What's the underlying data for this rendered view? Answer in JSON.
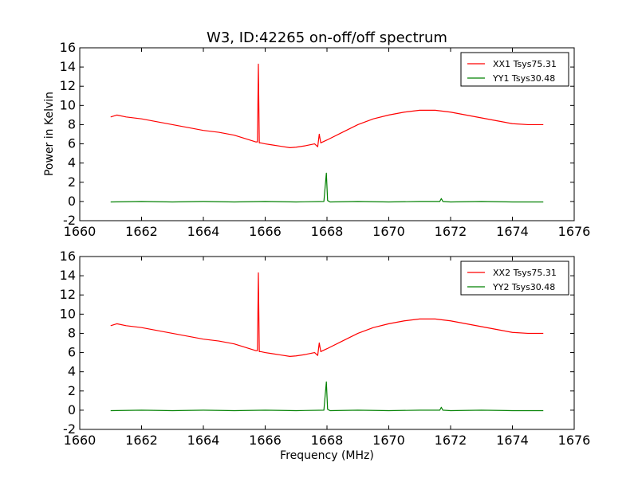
{
  "figure": {
    "title": "W3, ID:42265 on-off/off spectrum",
    "ylabel": "Power in Kelvin",
    "xlabel": "Frequency (MHz)"
  },
  "chart_data": [
    {
      "type": "line",
      "title": "W3, ID:42265 on-off/off spectrum",
      "xlabel": "",
      "ylabel": "Power in Kelvin",
      "xlim": [
        1660,
        1676
      ],
      "ylim": [
        -2,
        16
      ],
      "xticks": [
        1660,
        1662,
        1664,
        1666,
        1668,
        1670,
        1672,
        1674,
        1676
      ],
      "yticks": [
        -2,
        0,
        2,
        4,
        6,
        8,
        10,
        12,
        14,
        16
      ],
      "legend_position": "top-right",
      "series": [
        {
          "name": "XX1 Tsys75.31",
          "color": "#ff0000",
          "x": [
            1661.0,
            1661.2,
            1661.5,
            1662.0,
            1662.5,
            1663.0,
            1663.5,
            1664.0,
            1664.5,
            1665.0,
            1665.3,
            1665.6,
            1665.7,
            1665.75,
            1665.78,
            1665.81,
            1665.85,
            1666.0,
            1666.2,
            1666.5,
            1666.8,
            1667.0,
            1667.3,
            1667.6,
            1667.7,
            1667.75,
            1667.8,
            1668.0,
            1668.5,
            1669.0,
            1669.5,
            1670.0,
            1670.5,
            1671.0,
            1671.5,
            1672.0,
            1672.5,
            1673.0,
            1673.5,
            1674.0,
            1674.5,
            1675.0
          ],
          "y": [
            8.8,
            9.0,
            8.8,
            8.6,
            8.3,
            8.0,
            7.7,
            7.4,
            7.2,
            6.9,
            6.6,
            6.3,
            6.2,
            6.2,
            14.3,
            6.1,
            6.1,
            6.0,
            5.9,
            5.75,
            5.6,
            5.65,
            5.8,
            6.0,
            5.7,
            7.0,
            6.1,
            6.4,
            7.2,
            8.0,
            8.6,
            9.0,
            9.3,
            9.5,
            9.5,
            9.3,
            9.0,
            8.7,
            8.4,
            8.1,
            8.0,
            8.0
          ]
        },
        {
          "name": "YY1 Tsys30.48",
          "color": "#008000",
          "x": [
            1661.0,
            1662.0,
            1663.0,
            1664.0,
            1665.0,
            1666.0,
            1667.0,
            1667.9,
            1667.98,
            1668.02,
            1668.1,
            1669.0,
            1670.0,
            1671.0,
            1671.65,
            1671.7,
            1671.75,
            1672.0,
            1673.0,
            1674.0,
            1675.0
          ],
          "y": [
            -0.05,
            0.0,
            -0.05,
            0.0,
            -0.05,
            0.0,
            -0.05,
            0.0,
            2.95,
            0.1,
            -0.05,
            0.0,
            -0.05,
            0.0,
            0.0,
            0.3,
            0.0,
            -0.05,
            0.0,
            -0.05,
            -0.05
          ]
        }
      ]
    },
    {
      "type": "line",
      "title": "",
      "xlabel": "Frequency (MHz)",
      "ylabel": "",
      "xlim": [
        1660,
        1676
      ],
      "ylim": [
        -2,
        16
      ],
      "xticks": [
        1660,
        1662,
        1664,
        1666,
        1668,
        1670,
        1672,
        1674,
        1676
      ],
      "yticks": [
        -2,
        0,
        2,
        4,
        6,
        8,
        10,
        12,
        14,
        16
      ],
      "legend_position": "top-right",
      "series": [
        {
          "name": "XX2 Tsys75.31",
          "color": "#ff0000",
          "x": [
            1661.0,
            1661.2,
            1661.5,
            1662.0,
            1662.5,
            1663.0,
            1663.5,
            1664.0,
            1664.5,
            1665.0,
            1665.3,
            1665.6,
            1665.7,
            1665.75,
            1665.78,
            1665.81,
            1665.85,
            1666.0,
            1666.2,
            1666.5,
            1666.8,
            1667.0,
            1667.3,
            1667.6,
            1667.7,
            1667.75,
            1667.8,
            1668.0,
            1668.5,
            1669.0,
            1669.5,
            1670.0,
            1670.5,
            1671.0,
            1671.5,
            1672.0,
            1672.5,
            1673.0,
            1673.5,
            1674.0,
            1674.5,
            1675.0
          ],
          "y": [
            8.8,
            9.0,
            8.8,
            8.6,
            8.3,
            8.0,
            7.7,
            7.4,
            7.2,
            6.9,
            6.6,
            6.3,
            6.2,
            6.2,
            14.3,
            6.1,
            6.1,
            6.0,
            5.9,
            5.75,
            5.6,
            5.65,
            5.8,
            6.0,
            5.7,
            7.0,
            6.1,
            6.4,
            7.2,
            8.0,
            8.6,
            9.0,
            9.3,
            9.5,
            9.5,
            9.3,
            9.0,
            8.7,
            8.4,
            8.1,
            8.0,
            8.0
          ]
        },
        {
          "name": "YY2 Tsys30.48",
          "color": "#008000",
          "x": [
            1661.0,
            1662.0,
            1663.0,
            1664.0,
            1665.0,
            1666.0,
            1667.0,
            1667.9,
            1667.98,
            1668.02,
            1668.1,
            1669.0,
            1670.0,
            1671.0,
            1671.65,
            1671.7,
            1671.75,
            1672.0,
            1673.0,
            1674.0,
            1675.0
          ],
          "y": [
            -0.05,
            0.0,
            -0.05,
            0.0,
            -0.05,
            0.0,
            -0.05,
            0.0,
            2.95,
            0.1,
            -0.05,
            0.0,
            -0.05,
            0.0,
            0.0,
            0.3,
            0.0,
            -0.05,
            0.0,
            -0.05,
            -0.05
          ]
        }
      ]
    }
  ]
}
